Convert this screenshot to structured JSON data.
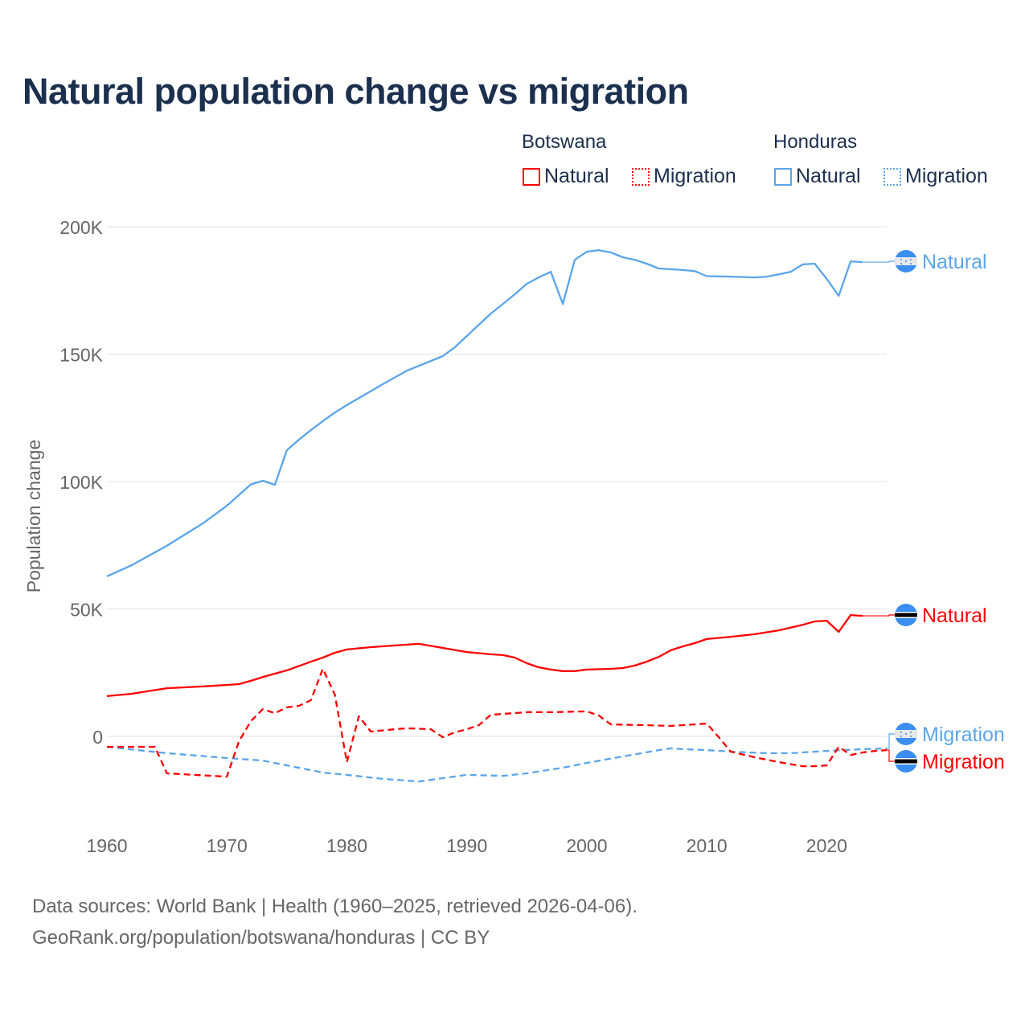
{
  "title": "Natural population change vs migration",
  "legend": {
    "groups": [
      {
        "country": "Botswana",
        "items": [
          {
            "label": "Natural",
            "style": "solid"
          },
          {
            "label": "Migration",
            "style": "dotted"
          }
        ],
        "color": "#ff0000"
      },
      {
        "country": "Honduras",
        "items": [
          {
            "label": "Natural",
            "style": "solid"
          },
          {
            "label": "Migration",
            "style": "dotted"
          }
        ],
        "color": "#5aa5ea"
      }
    ]
  },
  "footer": {
    "line1": "Data sources: World Bank | Health (1960–2025, retrieved 2026-04-06).",
    "line2": "GeoRank.org/population/botswana/honduras | CC BY"
  },
  "chart_data": {
    "type": "line",
    "title": "Natural population change vs migration",
    "xlabel": "",
    "ylabel": "Population change",
    "xlim": [
      1960,
      2025
    ],
    "ylim": [
      -35000,
      200000
    ],
    "x_ticks": [
      1960,
      1970,
      1980,
      1990,
      2000,
      2010,
      2020
    ],
    "x_tick_labels": [
      "1960",
      "1970",
      "1980",
      "1990",
      "2000",
      "2010",
      "2020"
    ],
    "y_ticks": [
      0,
      50000,
      100000,
      150000,
      200000
    ],
    "y_tick_labels": [
      "0",
      "50K",
      "100K",
      "150K",
      "200K"
    ],
    "grid": true,
    "legend_position": "top-right",
    "series": [
      {
        "name": "Honduras Natural",
        "end_label": "Natural",
        "color": "#5aa5ea",
        "dash": "solid",
        "flag": "honduras",
        "points": [
          [
            1960,
            62800
          ],
          [
            1962,
            67000
          ],
          [
            1965,
            74800
          ],
          [
            1968,
            83600
          ],
          [
            1970,
            90500
          ],
          [
            1972,
            98900
          ],
          [
            1973,
            100300
          ],
          [
            1974,
            98700
          ],
          [
            1975,
            112300
          ],
          [
            1976,
            116400
          ],
          [
            1977,
            120200
          ],
          [
            1978,
            123700
          ],
          [
            1979,
            127100
          ],
          [
            1980,
            130000
          ],
          [
            1983,
            138200
          ],
          [
            1985,
            143500
          ],
          [
            1988,
            149200
          ],
          [
            1989,
            152700
          ],
          [
            1990,
            157100
          ],
          [
            1991,
            161500
          ],
          [
            1992,
            165900
          ],
          [
            1993,
            169700
          ],
          [
            1994,
            173500
          ],
          [
            1995,
            177600
          ],
          [
            1996,
            180100
          ],
          [
            1997,
            182300
          ],
          [
            1998,
            169700
          ],
          [
            1999,
            187000
          ],
          [
            2000,
            190200
          ],
          [
            2001,
            190800
          ],
          [
            2002,
            189900
          ],
          [
            2003,
            188000
          ],
          [
            2004,
            187000
          ],
          [
            2005,
            185500
          ],
          [
            2006,
            183600
          ],
          [
            2007,
            183300
          ],
          [
            2008,
            183000
          ],
          [
            2009,
            182600
          ],
          [
            2010,
            180600
          ],
          [
            2012,
            180400
          ],
          [
            2014,
            180100
          ],
          [
            2015,
            180400
          ],
          [
            2016,
            181300
          ],
          [
            2017,
            182300
          ],
          [
            2018,
            185200
          ],
          [
            2019,
            185500
          ],
          [
            2020,
            179500
          ],
          [
            2021,
            172900
          ],
          [
            2022,
            186400
          ],
          [
            2023,
            186100
          ]
        ]
      },
      {
        "name": "Botswana Natural",
        "end_label": "Natural",
        "color": "#ff0000",
        "dash": "solid",
        "flag": "botswana",
        "points": [
          [
            1960,
            15800
          ],
          [
            1962,
            16700
          ],
          [
            1965,
            18900
          ],
          [
            1968,
            19600
          ],
          [
            1970,
            20200
          ],
          [
            1971,
            20500
          ],
          [
            1972,
            21800
          ],
          [
            1973,
            23300
          ],
          [
            1975,
            25900
          ],
          [
            1977,
            29300
          ],
          [
            1978,
            30900
          ],
          [
            1979,
            32800
          ],
          [
            1980,
            34100
          ],
          [
            1982,
            35000
          ],
          [
            1985,
            36000
          ],
          [
            1986,
            36300
          ],
          [
            1988,
            34700
          ],
          [
            1990,
            33100
          ],
          [
            1992,
            32200
          ],
          [
            1993,
            31900
          ],
          [
            1994,
            30900
          ],
          [
            1995,
            28700
          ],
          [
            1996,
            27100
          ],
          [
            1997,
            26200
          ],
          [
            1998,
            25600
          ],
          [
            1999,
            25600
          ],
          [
            2000,
            26200
          ],
          [
            2002,
            26500
          ],
          [
            2003,
            26800
          ],
          [
            2004,
            27800
          ],
          [
            2005,
            29300
          ],
          [
            2006,
            31200
          ],
          [
            2007,
            33800
          ],
          [
            2008,
            35300
          ],
          [
            2009,
            36600
          ],
          [
            2010,
            38200
          ],
          [
            2012,
            39100
          ],
          [
            2014,
            40100
          ],
          [
            2016,
            41600
          ],
          [
            2018,
            43800
          ],
          [
            2019,
            45100
          ],
          [
            2020,
            45400
          ],
          [
            2021,
            41000
          ],
          [
            2022,
            47600
          ],
          [
            2023,
            47300
          ]
        ]
      },
      {
        "name": "Honduras Migration",
        "end_label": "Migration",
        "color": "#5aa5ea",
        "dash": "dashed",
        "flag": "honduras",
        "points": [
          [
            1960,
            -4100
          ],
          [
            1965,
            -6600
          ],
          [
            1970,
            -8500
          ],
          [
            1973,
            -9500
          ],
          [
            1975,
            -11400
          ],
          [
            1978,
            -14200
          ],
          [
            1980,
            -15100
          ],
          [
            1983,
            -16700
          ],
          [
            1986,
            -17700
          ],
          [
            1988,
            -16400
          ],
          [
            1990,
            -15100
          ],
          [
            1993,
            -15500
          ],
          [
            1995,
            -14500
          ],
          [
            1998,
            -12300
          ],
          [
            2000,
            -10400
          ],
          [
            2003,
            -7900
          ],
          [
            2006,
            -5400
          ],
          [
            2007,
            -4700
          ],
          [
            2008,
            -5000
          ],
          [
            2010,
            -5400
          ],
          [
            2012,
            -6000
          ],
          [
            2015,
            -6600
          ],
          [
            2017,
            -6600
          ],
          [
            2020,
            -5700
          ],
          [
            2023,
            -5000
          ],
          [
            2025,
            -4700
          ]
        ]
      },
      {
        "name": "Botswana Migration",
        "end_label": "Migration",
        "color": "#ff0000",
        "dash": "dashed",
        "flag": "botswana",
        "points": [
          [
            1960,
            -4100
          ],
          [
            1964,
            -4100
          ],
          [
            1965,
            -14500
          ],
          [
            1970,
            -15800
          ],
          [
            1971,
            -2000
          ],
          [
            1972,
            6000
          ],
          [
            1973,
            10700
          ],
          [
            1974,
            9100
          ],
          [
            1975,
            11400
          ],
          [
            1976,
            12000
          ],
          [
            1977,
            14200
          ],
          [
            1978,
            26500
          ],
          [
            1979,
            16400
          ],
          [
            1980,
            -10100
          ],
          [
            1981,
            7900
          ],
          [
            1982,
            1900
          ],
          [
            1984,
            2800
          ],
          [
            1985,
            3200
          ],
          [
            1987,
            2800
          ],
          [
            1988,
            -300
          ],
          [
            1989,
            1600
          ],
          [
            1990,
            2800
          ],
          [
            1991,
            4400
          ],
          [
            1992,
            8500
          ],
          [
            1993,
            8800
          ],
          [
            1995,
            9500
          ],
          [
            1997,
            9500
          ],
          [
            2000,
            9800
          ],
          [
            2001,
            8200
          ],
          [
            2002,
            4700
          ],
          [
            2005,
            4400
          ],
          [
            2007,
            4100
          ],
          [
            2009,
            4700
          ],
          [
            2010,
            5000
          ],
          [
            2011,
            -300
          ],
          [
            2012,
            -6000
          ],
          [
            2014,
            -8200
          ],
          [
            2016,
            -10100
          ],
          [
            2018,
            -11700
          ],
          [
            2019,
            -11700
          ],
          [
            2020,
            -11400
          ],
          [
            2021,
            -4100
          ],
          [
            2022,
            -7300
          ],
          [
            2023,
            -6300
          ],
          [
            2024,
            -5700
          ],
          [
            2025,
            -5400
          ]
        ]
      }
    ]
  }
}
